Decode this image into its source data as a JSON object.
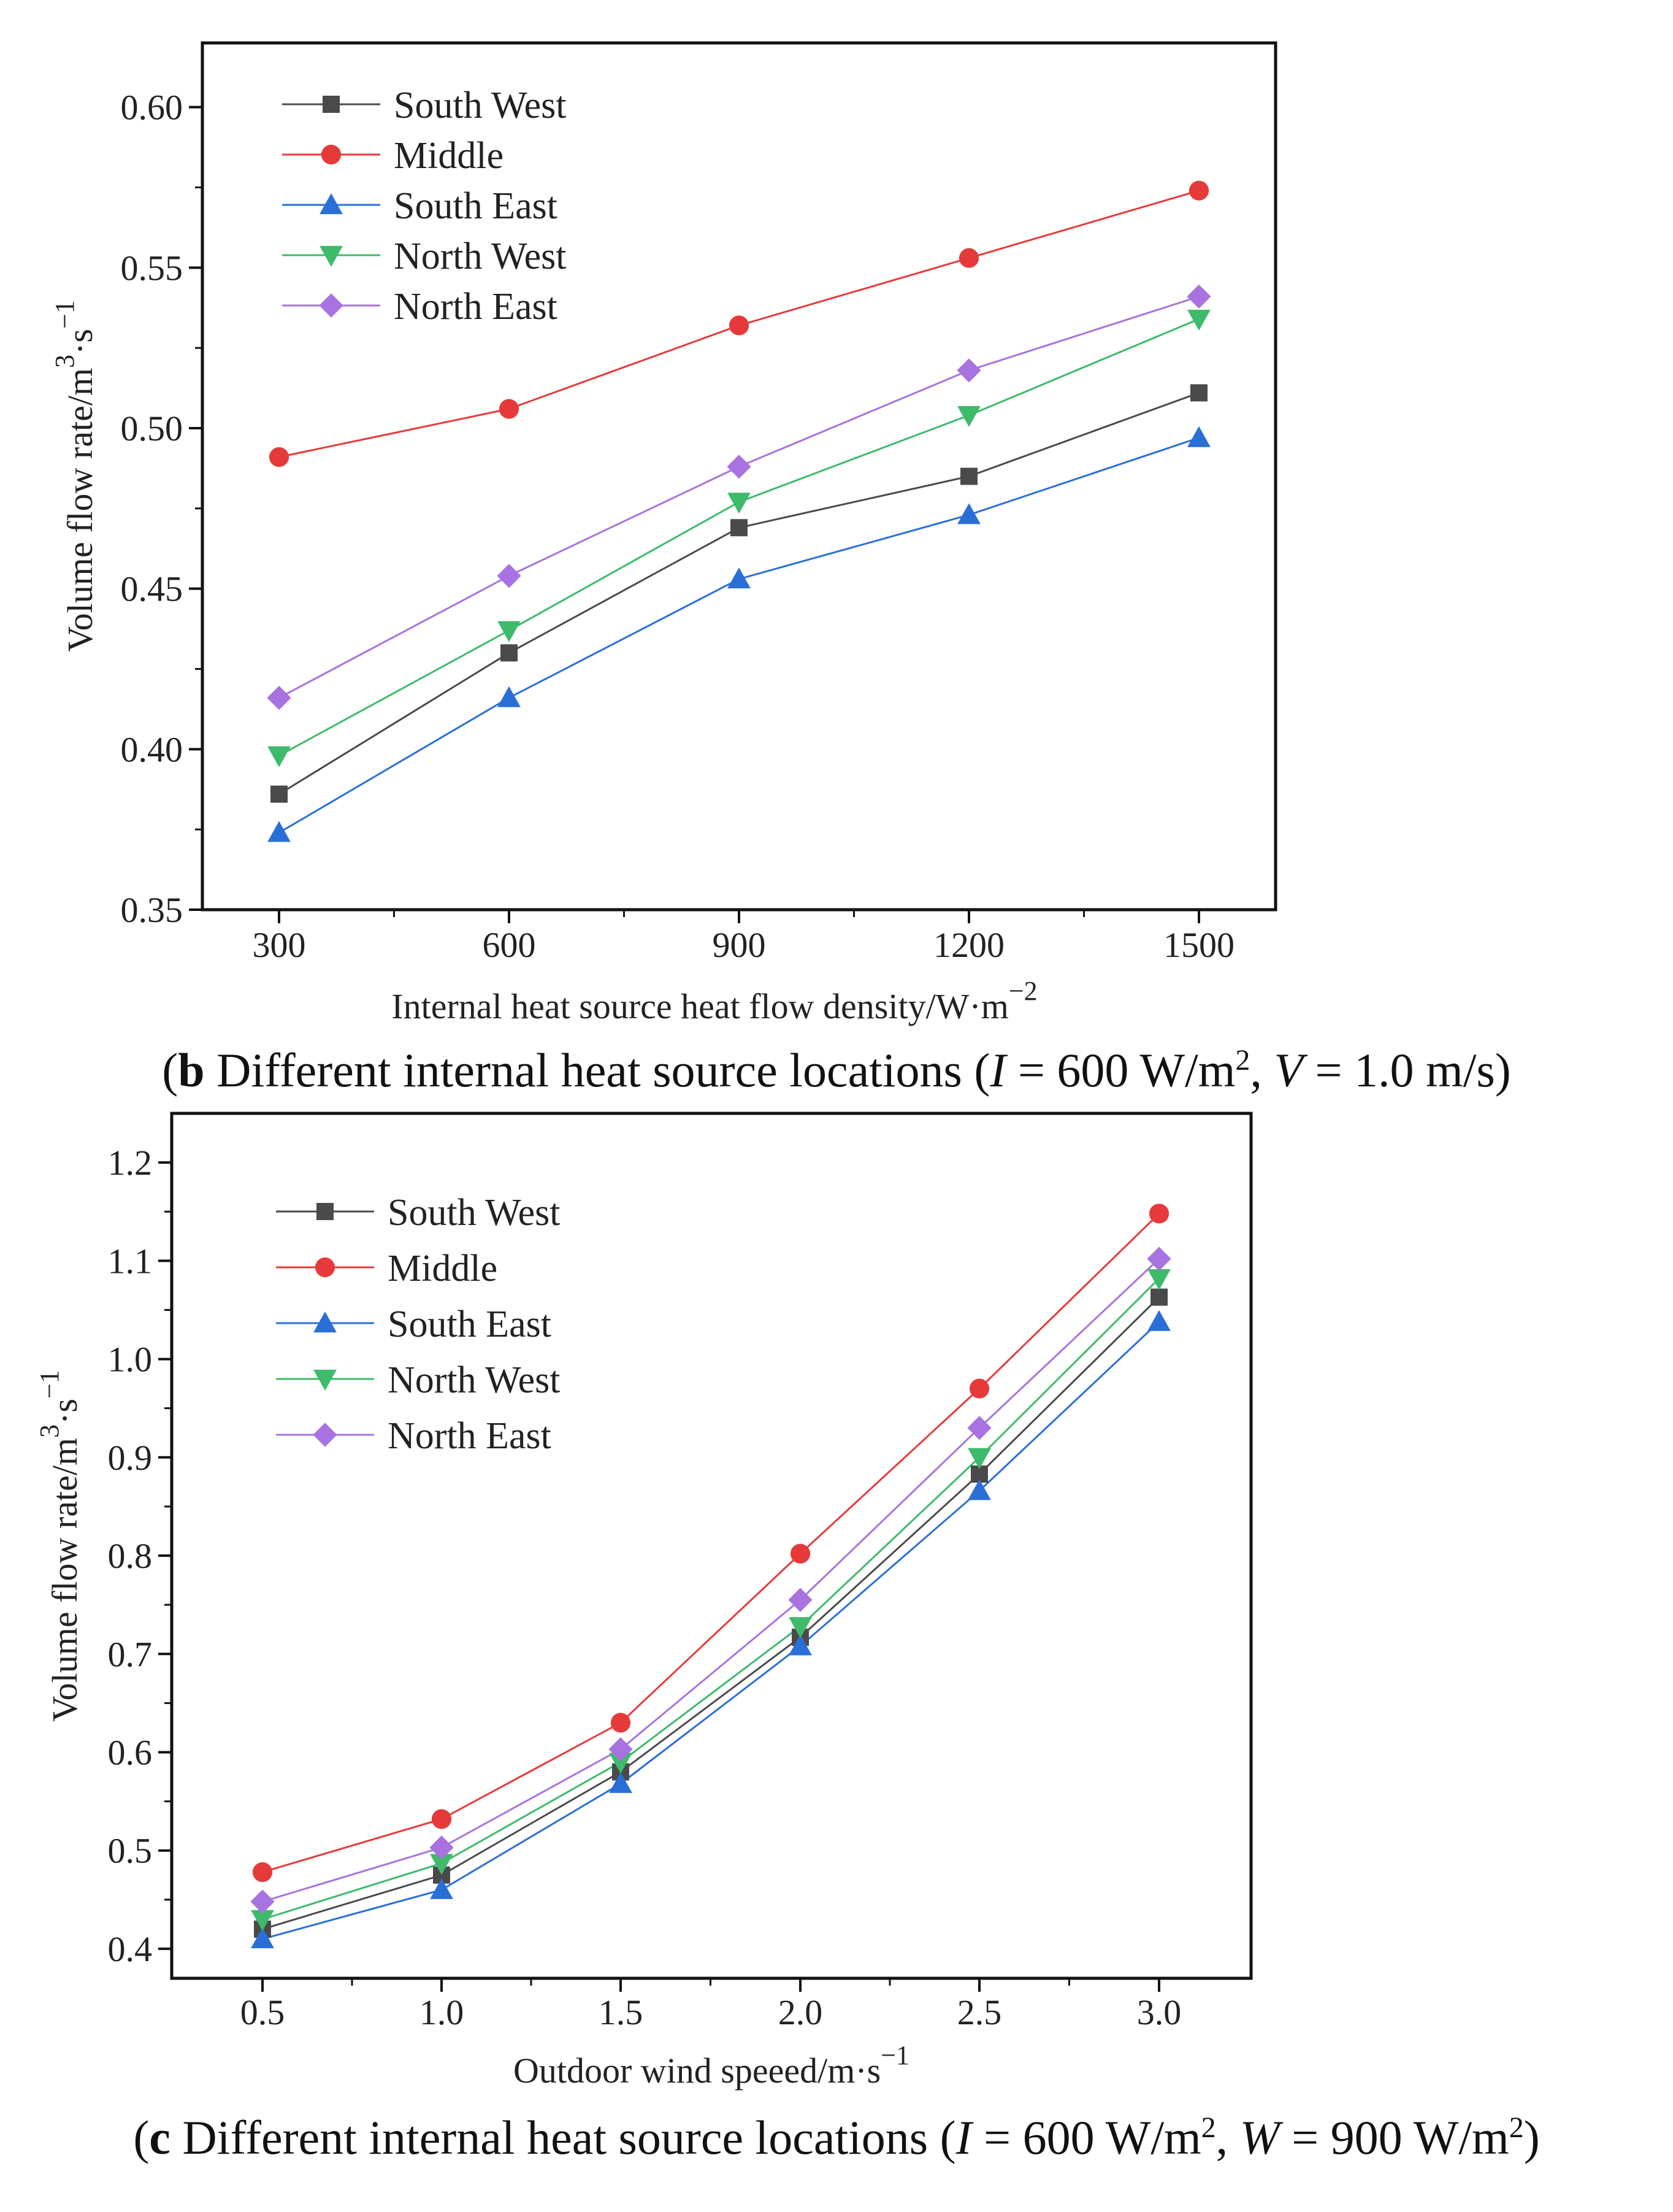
{
  "chart_data": [
    {
      "type": "line",
      "panel_caption": {
        "letter": "b",
        "text": " Different internal heat source locations (",
        "v1_var": "I",
        "v1_val": " = 600 W/m",
        "sep": ", ",
        "v2_var": "V",
        "v2_val": " = 1.0 m/s",
        "end": ")"
      },
      "xlabel": "Internal heat source heat flow density/W·m",
      "xlabel_sup": "−2",
      "ylabel": "Volume flow rate/m",
      "ylabel_sup1": "3",
      "ylabel_mid": "·s",
      "ylabel_sup2": "−1",
      "x": [
        300,
        600,
        900,
        1200,
        1500
      ],
      "xtick_labels": [
        "300",
        "600",
        "900",
        "1200",
        "1500"
      ],
      "ylim": [
        0.35,
        0.62
      ],
      "yticks": [
        0.35,
        0.4,
        0.45,
        0.5,
        0.55,
        0.6
      ],
      "ytick_labels": [
        "0.35",
        "0.40",
        "0.45",
        "0.50",
        "0.55",
        "0.60"
      ],
      "legend_position": "top-left",
      "series": [
        {
          "name": "South West",
          "values": [
            0.386,
            0.43,
            0.469,
            0.485,
            0.511
          ]
        },
        {
          "name": "Middle",
          "values": [
            0.491,
            0.506,
            0.532,
            0.553,
            0.574
          ]
        },
        {
          "name": "South East",
          "values": [
            0.374,
            0.416,
            0.453,
            0.473,
            0.497
          ]
        },
        {
          "name": "North West",
          "values": [
            0.398,
            0.437,
            0.477,
            0.504,
            0.534
          ]
        },
        {
          "name": "North East",
          "values": [
            0.416,
            0.454,
            0.488,
            0.518,
            0.541
          ]
        }
      ]
    },
    {
      "type": "line",
      "panel_caption": {
        "letter": "c",
        "text": " Different internal heat source locations (",
        "v1_var": "I",
        "v1_val": " = 600 W/m",
        "sep": ", ",
        "v2_var": "W",
        "v2_val": " = 900 W/m",
        "end": ")"
      },
      "xlabel": "Outdoor wind speeed/m·s",
      "xlabel_sup": "−1",
      "ylabel": "Volume flow rate/m",
      "ylabel_sup1": "3",
      "ylabel_mid": "·s",
      "ylabel_sup2": "−1",
      "x": [
        0.5,
        1.0,
        1.5,
        2.0,
        2.5,
        3.0
      ],
      "xtick_labels": [
        "0.5",
        "1.0",
        "1.5",
        "2.0",
        "2.5",
        "3.0"
      ],
      "ylim": [
        0.37,
        1.25
      ],
      "yticks": [
        0.4,
        0.5,
        0.6,
        0.7,
        0.8,
        0.9,
        1.0,
        1.1,
        1.2
      ],
      "ytick_labels": [
        "0.4",
        "0.5",
        "0.6",
        "0.7",
        "0.8",
        "0.9",
        "1.0",
        "1.1",
        "1.2"
      ],
      "legend_position": "top-left",
      "series": [
        {
          "name": "South West",
          "values": [
            0.42,
            0.475,
            0.58,
            0.717,
            0.883,
            1.063
          ]
        },
        {
          "name": "Middle",
          "values": [
            0.478,
            0.532,
            0.63,
            0.802,
            0.97,
            1.148
          ]
        },
        {
          "name": "South East",
          "values": [
            0.41,
            0.46,
            0.568,
            0.708,
            0.866,
            1.038
          ]
        },
        {
          "name": "North West",
          "values": [
            0.43,
            0.487,
            0.59,
            0.728,
            0.9,
            1.082
          ]
        },
        {
          "name": "North East",
          "values": [
            0.448,
            0.503,
            0.603,
            0.755,
            0.93,
            1.102
          ]
        }
      ]
    }
  ],
  "series_colors": [
    "#4a4a4a",
    "#e63a3a",
    "#2a6fd8",
    "#3dba6a",
    "#a872e0"
  ],
  "series_markers": [
    "square",
    "circle",
    "triangle-up",
    "triangle-down",
    "diamond"
  ]
}
